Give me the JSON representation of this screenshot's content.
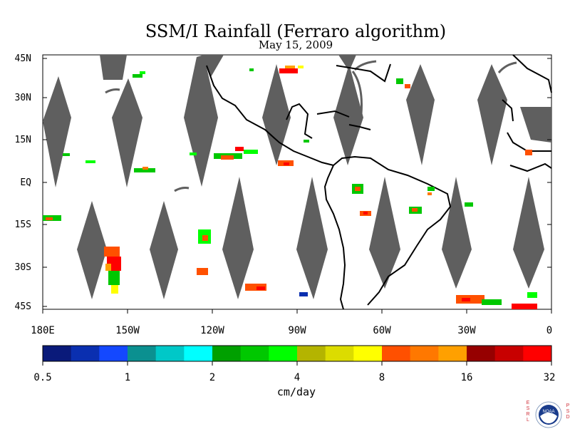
{
  "title": "SSM/I Rainfall (Ferraro algorithm)",
  "subtitle": "May 15, 2009",
  "lat_labels": [
    "45N",
    "30N",
    "15N",
    "EQ",
    "15S",
    "30S",
    "45S"
  ],
  "lon_labels": [
    "180E",
    "150W",
    "120W",
    "90W",
    "60W",
    "30W",
    "0"
  ],
  "colorbar": {
    "colors": [
      "#0a1a7a",
      "#0a2fb0",
      "#1448ff",
      "#0b9090",
      "#00c8c8",
      "#00ffff",
      "#00a000",
      "#00c800",
      "#00ff00",
      "#b4b400",
      "#dcdc00",
      "#ffff00",
      "#ff5000",
      "#ff7800",
      "#ffa000",
      "#960000",
      "#c80000",
      "#ff0000"
    ],
    "tick_labels": [
      "0.5",
      "1",
      "2",
      "4",
      "8",
      "16",
      "32"
    ],
    "units": "cm/day"
  },
  "logo": {
    "left_letters": [
      "E",
      "S",
      "R",
      "L"
    ],
    "right_letters": [
      "P",
      "S",
      "D"
    ],
    "seal_text": "NOAA"
  },
  "colors": {
    "swath_gap": "#5f5f5f",
    "coast": "#000000"
  }
}
